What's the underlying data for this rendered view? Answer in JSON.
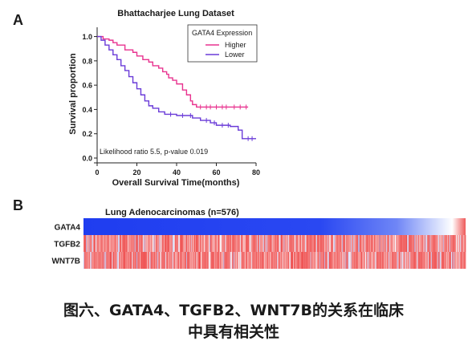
{
  "figure": {
    "panel_a_label": "A",
    "panel_b_label": "B",
    "caption_line1": "图六、GATA4、TGFB2、WNT7B的关系在临床",
    "caption_line2": "中具有相关性"
  },
  "colors": {
    "higher": "#e8338f",
    "lower": "#6a3bd8",
    "heat_low": "#1f3df0",
    "heat_high": "#ee4a4a",
    "text": "#1a1a1a"
  },
  "chart_data": [
    {
      "type": "line",
      "subtype": "kaplan-meier",
      "title": "Bhattacharjee Lung Dataset",
      "xlabel": "Overall Survival Time(months)",
      "ylabel": "Survival proportion",
      "xlim": [
        0,
        80
      ],
      "ylim": [
        0,
        1.05
      ],
      "xticks": [
        0,
        20,
        40,
        60,
        80
      ],
      "yticks": [
        0.0,
        0.2,
        0.4,
        0.6,
        0.8,
        1.0
      ],
      "xtick_labels": [
        "0",
        "20",
        "40",
        "60",
        "80"
      ],
      "ytick_labels": [
        "0.0",
        "0.2",
        "0.4",
        "0.6",
        "0.8",
        "1.0"
      ],
      "legend_title": "GATA4 Expression",
      "legend_position": "top-right",
      "annotation": "Likelihood ratio 5.5, p-value 0.019",
      "series": [
        {
          "name": "Higher",
          "color_key": "higher",
          "steps": [
            [
              0,
              1.0
            ],
            [
              3,
              0.98
            ],
            [
              6,
              0.97
            ],
            [
              8,
              0.95
            ],
            [
              10,
              0.93
            ],
            [
              14,
              0.89
            ],
            [
              18,
              0.87
            ],
            [
              20,
              0.84
            ],
            [
              23,
              0.81
            ],
            [
              26,
              0.79
            ],
            [
              28,
              0.76
            ],
            [
              31,
              0.74
            ],
            [
              33,
              0.71
            ],
            [
              35,
              0.69
            ],
            [
              36,
              0.66
            ],
            [
              38,
              0.64
            ],
            [
              40,
              0.61
            ],
            [
              43,
              0.56
            ],
            [
              45,
              0.52
            ],
            [
              47,
              0.47
            ],
            [
              48,
              0.44
            ],
            [
              50,
              0.42
            ],
            [
              76,
              0.42
            ]
          ],
          "censor_x": [
            52,
            55,
            57,
            60,
            63,
            65,
            69,
            72,
            75
          ]
        },
        {
          "name": "Lower",
          "color_key": "lower",
          "steps": [
            [
              0,
              1.0
            ],
            [
              2,
              0.97
            ],
            [
              4,
              0.93
            ],
            [
              6,
              0.89
            ],
            [
              8,
              0.85
            ],
            [
              10,
              0.81
            ],
            [
              12,
              0.76
            ],
            [
              14,
              0.72
            ],
            [
              16,
              0.67
            ],
            [
              18,
              0.62
            ],
            [
              20,
              0.57
            ],
            [
              22,
              0.52
            ],
            [
              24,
              0.47
            ],
            [
              26,
              0.43
            ],
            [
              28,
              0.41
            ],
            [
              31,
              0.38
            ],
            [
              34,
              0.36
            ],
            [
              40,
              0.35
            ],
            [
              48,
              0.33
            ],
            [
              52,
              0.31
            ],
            [
              57,
              0.29
            ],
            [
              60,
              0.27
            ],
            [
              67,
              0.26
            ],
            [
              71,
              0.23
            ],
            [
              73,
              0.16
            ],
            [
              80,
              0.16
            ]
          ],
          "censor_x": [
            37,
            43,
            47,
            55,
            59,
            63,
            66,
            76,
            78
          ]
        }
      ]
    },
    {
      "type": "heatmap",
      "title": "Lung Adenocarcinomas (n=576)",
      "rows": [
        "GATA4",
        "TGFB2",
        "WNT7B"
      ],
      "n_samples": 576,
      "sort_row": "GATA4",
      "gradient_stops": [
        [
          0,
          "#1f3df0"
        ],
        [
          0.62,
          "#2a48f2"
        ],
        [
          0.82,
          "#6f86f6"
        ],
        [
          0.93,
          "#dbe2fd"
        ],
        [
          0.965,
          "#ffffff"
        ],
        [
          1,
          "#ee5a5a"
        ]
      ]
    }
  ]
}
